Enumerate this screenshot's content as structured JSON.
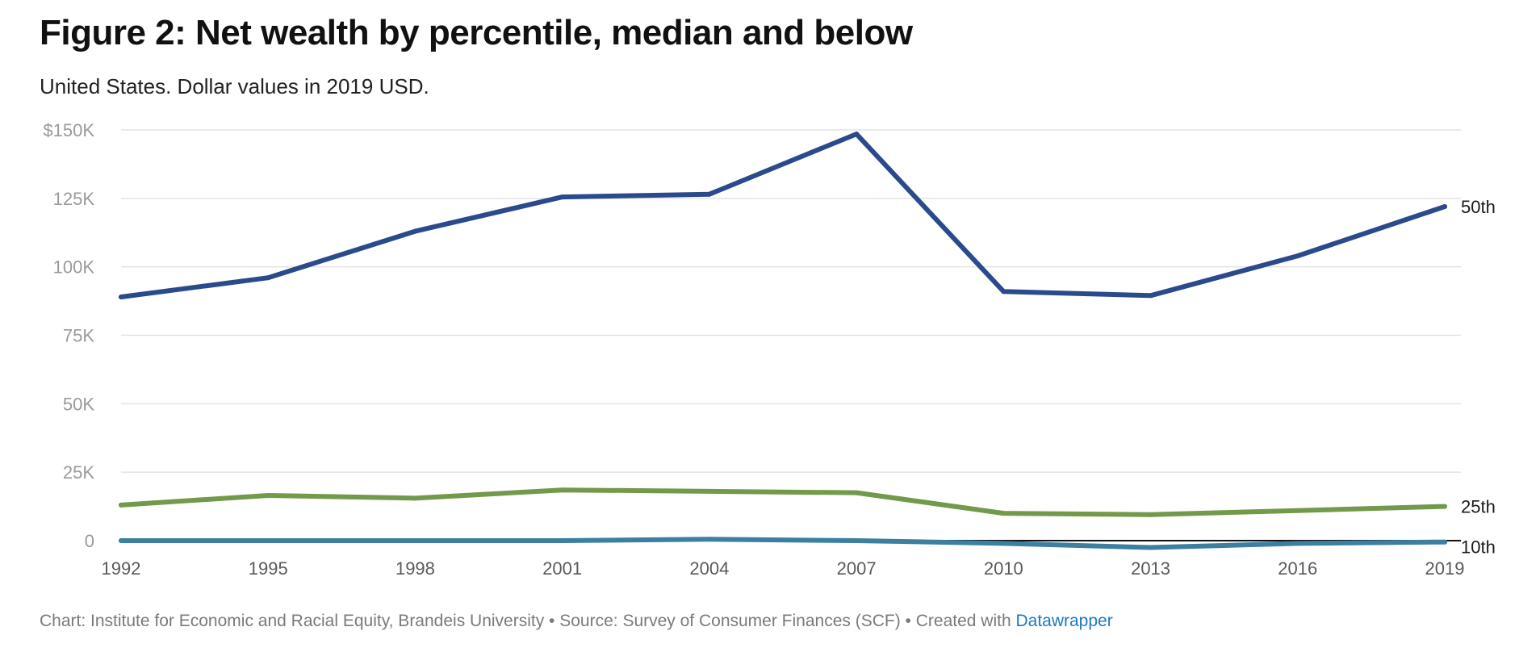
{
  "header": {
    "title": "Figure 2: Net wealth by percentile, median and below",
    "subtitle": "United States. Dollar values in 2019 USD."
  },
  "footer": {
    "credit": "Chart: Institute for Economic and Racial Equity, Brandeis University • Source: Survey of Consumer Finances (SCF) • Created with ",
    "link": "Datawrapper"
  },
  "chart_data": {
    "type": "line",
    "title": "Figure 2: Net wealth by percentile, median and below",
    "subtitle": "United States. Dollar values in 2019 USD.",
    "xlabel": "",
    "ylabel": "",
    "x": [
      1992,
      1995,
      1998,
      2001,
      2004,
      2007,
      2010,
      2013,
      2016,
      2019
    ],
    "x_tick_labels": [
      "1992",
      "1995",
      "1998",
      "2001",
      "2004",
      "2007",
      "2010",
      "2013",
      "2016",
      "2019"
    ],
    "ylim": [
      0,
      150000
    ],
    "y_ticks": [
      0,
      25000,
      50000,
      75000,
      100000,
      125000,
      150000
    ],
    "y_tick_labels": [
      "0",
      "25K",
      "50K",
      "75K",
      "100K",
      "125K",
      "$150K"
    ],
    "grid": true,
    "legend": "direct labels at line ends (right)",
    "series": [
      {
        "name": "50th",
        "color": "#2b4a8c",
        "values": [
          89000,
          96000,
          113000,
          125500,
          126500,
          148500,
          91000,
          89500,
          104000,
          122000
        ]
      },
      {
        "name": "25th",
        "color": "#73994a",
        "values": [
          13000,
          16500,
          15500,
          18500,
          18000,
          17500,
          10000,
          9500,
          11000,
          12500
        ]
      },
      {
        "name": "10th",
        "color": "#3c7fa1",
        "values": [
          0,
          0,
          0,
          0,
          500,
          0,
          -1000,
          -2500,
          -1000,
          -500
        ]
      }
    ]
  }
}
